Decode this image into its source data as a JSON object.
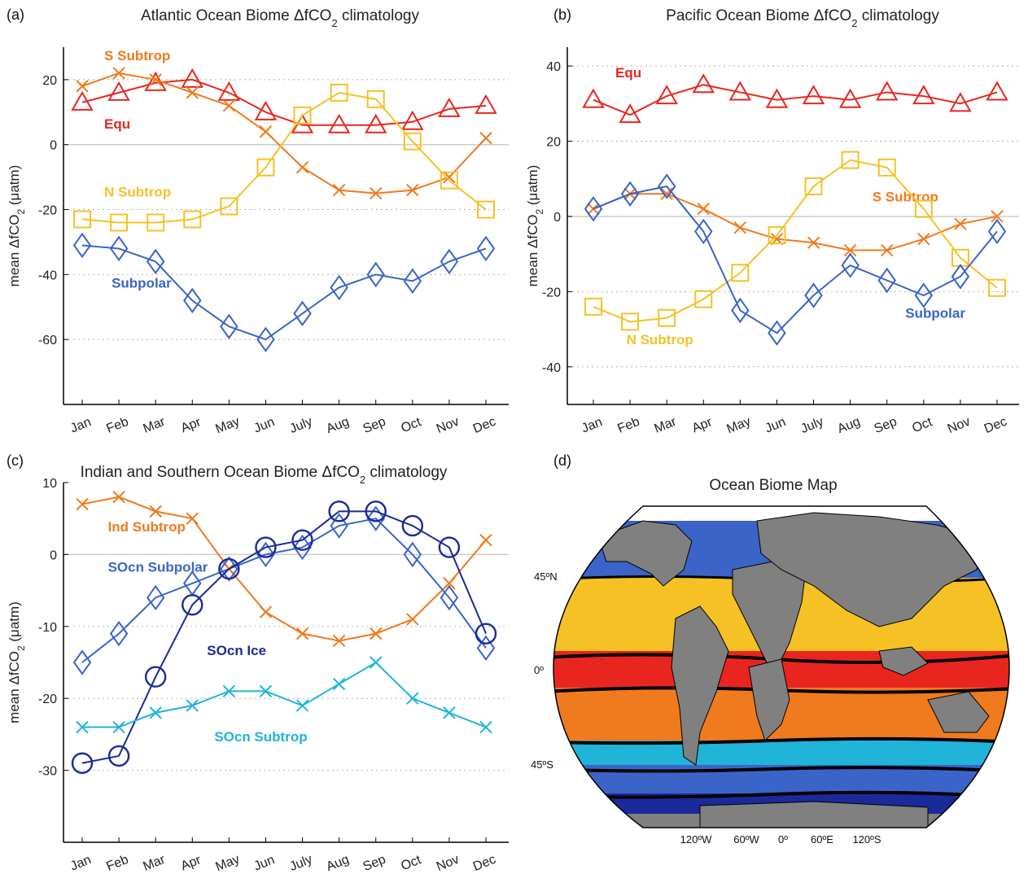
{
  "months": [
    "Jan",
    "Feb",
    "Mar",
    "Apr",
    "May",
    "Jun",
    "July",
    "Aug",
    "Sep",
    "Oct",
    "Nov",
    "Dec"
  ],
  "colors": {
    "equ": "#e8261f",
    "s_subtrop": "#f07a1e",
    "n_subtrop": "#f5c125",
    "subpolar": "#3a64c8",
    "socn_ice": "#1a2a9a",
    "socn_subtrop": "#20b4d8",
    "land": "#808080"
  },
  "chart_data": [
    {
      "type": "line",
      "panel_label": "(a)",
      "title": "Atlantic Ocean Biome ΔfCO2 climatology",
      "title_parts": {
        "pre": "Atlantic Ocean Biome ΔfCO",
        "sub": "2",
        "post": " climatology"
      },
      "ylabel_parts": {
        "pre": "mean ΔfCO",
        "sub": "2",
        "post": " (μatm)"
      },
      "ylim": [
        -80,
        30
      ],
      "yticks": [
        20,
        0,
        -20,
        -40,
        -60
      ],
      "gridlines": [
        20,
        -20,
        -40,
        -60
      ],
      "zero_line": true,
      "series": [
        {
          "name": "Equ",
          "color_key": "equ",
          "marker": "triangle",
          "values": [
            13,
            16,
            19,
            20,
            16,
            10,
            6,
            6,
            6,
            7,
            11,
            12
          ],
          "label_anchor": [
            0.6,
            5
          ]
        },
        {
          "name": "S Subtrop",
          "color_key": "s_subtrop",
          "marker": "x",
          "values": [
            18,
            22,
            20,
            16,
            12,
            4,
            -7,
            -14,
            -15,
            -14,
            -10,
            2
          ],
          "label_anchor": [
            0.6,
            26
          ]
        },
        {
          "name": "N Subtrop",
          "color_key": "n_subtrop",
          "marker": "square",
          "values": [
            -23,
            -24,
            -24,
            -23,
            -19,
            -7,
            9,
            16,
            14,
            1,
            -11,
            -20
          ],
          "label_anchor": [
            0.6,
            -16
          ]
        },
        {
          "name": "Subpolar",
          "color_key": "subpolar",
          "marker": "diamond",
          "values": [
            -31,
            -32,
            -36,
            -48,
            -56,
            -60,
            -52,
            -44,
            -40,
            -42,
            -36,
            -32
          ],
          "label_anchor": [
            0.8,
            -44
          ]
        }
      ]
    },
    {
      "type": "line",
      "panel_label": "(b)",
      "title": "Pacific Ocean Biome ΔfCO2 climatology",
      "title_parts": {
        "pre": "Pacific Ocean Biome ΔfCO",
        "sub": "2",
        "post": " climatology"
      },
      "ylabel_parts": {
        "pre": "mean ΔfCO",
        "sub": "2",
        "post": " (μatm)"
      },
      "ylim": [
        -50,
        45
      ],
      "yticks": [
        40,
        20,
        0,
        -20,
        -40
      ],
      "gridlines": [
        40,
        20,
        -20,
        -40
      ],
      "zero_line": true,
      "series": [
        {
          "name": "Equ",
          "color_key": "equ",
          "marker": "triangle",
          "values": [
            31,
            27,
            32,
            35,
            33,
            31,
            32,
            31,
            33,
            32,
            30,
            33
          ],
          "label_anchor": [
            0.6,
            37
          ]
        },
        {
          "name": "S Subtrop",
          "color_key": "s_subtrop",
          "marker": "x",
          "values": [
            2,
            6,
            6,
            2,
            -3,
            -6,
            -7,
            -9,
            -9,
            -6,
            -2,
            0
          ],
          "label_anchor": [
            7.6,
            4
          ]
        },
        {
          "name": "N Subtrop",
          "color_key": "n_subtrop",
          "marker": "square",
          "values": [
            -24,
            -28,
            -27,
            -22,
            -15,
            -5,
            8,
            15,
            13,
            2,
            -11,
            -19
          ],
          "label_anchor": [
            0.9,
            -34
          ]
        },
        {
          "name": "Subpolar",
          "color_key": "subpolar",
          "marker": "diamond",
          "values": [
            2,
            6,
            8,
            -4,
            -25,
            -31,
            -21,
            -13,
            -17,
            -21,
            -16,
            -4
          ],
          "label_anchor": [
            8.5,
            -27
          ]
        }
      ]
    },
    {
      "type": "line",
      "panel_label": "(c)",
      "title": "Indian and Southern Ocean Biome ΔfCO2 climatology",
      "title_parts": {
        "pre": "Indian and Southern Ocean Biome ΔfCO",
        "sub": "2",
        "post": " climatology"
      },
      "ylabel_parts": {
        "pre": "mean ΔfCO",
        "sub": "2",
        "post": " (μatm)"
      },
      "ylim": [
        -40,
        10
      ],
      "yticks": [
        10,
        0,
        -10,
        -20,
        -30
      ],
      "gridlines": [
        -10,
        -20,
        -30
      ],
      "zero_line": true,
      "series": [
        {
          "name": "Ind Subtrop",
          "color_key": "s_subtrop",
          "marker": "x",
          "values": [
            7,
            8,
            6,
            5,
            -2,
            -8,
            -11,
            -12,
            -11,
            -9,
            -4,
            2
          ],
          "label_anchor": [
            0.7,
            3.2
          ]
        },
        {
          "name": "SOcn Subpolar",
          "color_key": "subpolar",
          "marker": "diamond",
          "values": [
            -15,
            -11,
            -6,
            -4,
            -2,
            0,
            1,
            4,
            5,
            0,
            -6,
            -13
          ],
          "label_anchor": [
            0.7,
            -2.4
          ]
        },
        {
          "name": "SOcn Ice",
          "color_key": "socn_ice",
          "marker": "circle",
          "values": [
            -29,
            -28,
            -17,
            -7,
            -2,
            1,
            2,
            6,
            6,
            4,
            1,
            -11
          ],
          "label_anchor": [
            3.4,
            -14
          ]
        },
        {
          "name": "SOcn Subtrop",
          "color_key": "socn_subtrop",
          "marker": "x",
          "values": [
            -24,
            -24,
            -22,
            -21,
            -19,
            -19,
            -21,
            -18,
            -15,
            -20,
            -22,
            -24
          ],
          "label_anchor": [
            3.6,
            -26
          ]
        }
      ]
    }
  ],
  "map": {
    "panel_label": "(d)",
    "title": "Ocean Biome Map",
    "lat_labels": [
      "45ºN",
      "0º",
      "45ºS"
    ],
    "lon_labels": [
      "120ºW",
      "60ºW",
      "0º",
      "60ºE",
      "120ºS"
    ]
  }
}
